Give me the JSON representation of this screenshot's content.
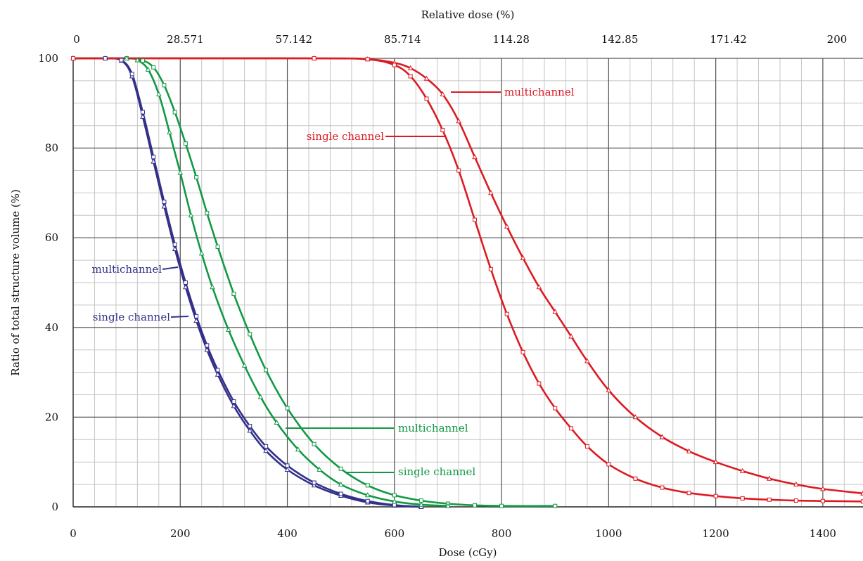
{
  "chart_data": {
    "type": "line",
    "xlabel": "Dose (cGy)",
    "ylabel": "Ratio of total structure volume (%)",
    "x2label": "Relative dose (%)",
    "xlim": [
      0,
      1475
    ],
    "ylim": [
      0,
      100
    ],
    "x_ticks": [
      0,
      200,
      400,
      600,
      800,
      1000,
      1200,
      1400
    ],
    "y_ticks": [
      0,
      20,
      40,
      60,
      80,
      100
    ],
    "x2_tick_labels": [
      "0",
      "28.571",
      "57.142",
      "85.714",
      "114.28",
      "142.85",
      "171.42",
      "200"
    ],
    "grid": true,
    "colors": {
      "blue": "#33308a",
      "green": "#119944",
      "red": "#dd1a22"
    },
    "series": [
      {
        "name": "multichannel",
        "color": "blue",
        "marker": "triangle",
        "x": [
          0,
          60,
          90,
          110,
          130,
          150,
          170,
          190,
          210,
          230,
          250,
          270,
          300,
          330,
          360,
          400,
          450,
          500,
          550,
          600,
          650
        ],
        "y": [
          100,
          100,
          99.5,
          96,
          87,
          77,
          67,
          57.5,
          49,
          41.5,
          35,
          29.5,
          22.5,
          17,
          12.5,
          8.3,
          4.8,
          2.5,
          1,
          0.3,
          0
        ]
      },
      {
        "name": "single channel",
        "color": "blue",
        "marker": "square",
        "x": [
          0,
          60,
          90,
          110,
          130,
          150,
          170,
          190,
          210,
          230,
          250,
          270,
          300,
          330,
          360,
          400,
          450,
          500,
          550,
          600,
          650
        ],
        "y": [
          100,
          100,
          99.6,
          96.5,
          88,
          78,
          68,
          58.5,
          50,
          42.5,
          36,
          30.5,
          23.5,
          18,
          13.5,
          9.2,
          5.4,
          2.9,
          1.3,
          0.4,
          0
        ]
      },
      {
        "name": "multichannel",
        "color": "green",
        "marker": "square",
        "x": [
          0,
          100,
          130,
          150,
          170,
          190,
          210,
          230,
          250,
          270,
          300,
          330,
          360,
          400,
          450,
          500,
          550,
          600,
          650,
          700,
          750,
          800,
          900
        ],
        "y": [
          100,
          100,
          99.5,
          98,
          94,
          88,
          81,
          73.5,
          65.5,
          58,
          47.5,
          38.5,
          30.5,
          22,
          14,
          8.5,
          4.8,
          2.6,
          1.4,
          0.7,
          0.35,
          0.2,
          0.2
        ]
      },
      {
        "name": "single channel",
        "color": "green",
        "marker": "triangle",
        "x": [
          0,
          100,
          120,
          140,
          160,
          180,
          200,
          220,
          240,
          260,
          290,
          320,
          350,
          380,
          420,
          460,
          500,
          550,
          600,
          650,
          700
        ],
        "y": [
          100,
          100,
          99.6,
          97.5,
          92,
          83.5,
          74.5,
          65,
          56.5,
          49,
          39.5,
          31.5,
          24.5,
          18.8,
          12.8,
          8.3,
          5,
          2.6,
          1.2,
          0.5,
          0.2
        ]
      },
      {
        "name": "multichannel",
        "color": "red",
        "marker": "triangle",
        "x": [
          0,
          450,
          550,
          600,
          630,
          660,
          690,
          720,
          750,
          780,
          810,
          840,
          870,
          900,
          930,
          960,
          1000,
          1050,
          1100,
          1150,
          1200,
          1250,
          1300,
          1350,
          1400,
          1475
        ],
        "y": [
          100,
          100,
          99.8,
          99,
          97.8,
          95.5,
          92,
          86,
          78,
          70,
          62.5,
          55.5,
          49,
          43.5,
          38,
          32.5,
          26,
          20,
          15.6,
          12.4,
          10,
          8,
          6.3,
          5,
          4,
          3
        ]
      },
      {
        "name": "single channel",
        "color": "red",
        "marker": "square",
        "x": [
          0,
          450,
          550,
          600,
          630,
          660,
          690,
          720,
          750,
          780,
          810,
          840,
          870,
          900,
          930,
          960,
          1000,
          1050,
          1100,
          1150,
          1200,
          1250,
          1300,
          1350,
          1400,
          1475
        ],
        "y": [
          100,
          100,
          99.8,
          98.5,
          96,
          91,
          84,
          75,
          64,
          53,
          43,
          34.5,
          27.5,
          22,
          17.5,
          13.5,
          9.5,
          6.3,
          4.3,
          3.1,
          2.4,
          1.9,
          1.6,
          1.4,
          1.3,
          1.2
        ]
      }
    ],
    "annotations": [
      {
        "text": "multichannel",
        "color": "blue"
      },
      {
        "text": "single channel",
        "color": "blue"
      },
      {
        "text": "multichannel",
        "color": "green"
      },
      {
        "text": "single channel",
        "color": "green"
      },
      {
        "text": "multichannel",
        "color": "red"
      },
      {
        "text": "single channel",
        "color": "red"
      }
    ]
  }
}
